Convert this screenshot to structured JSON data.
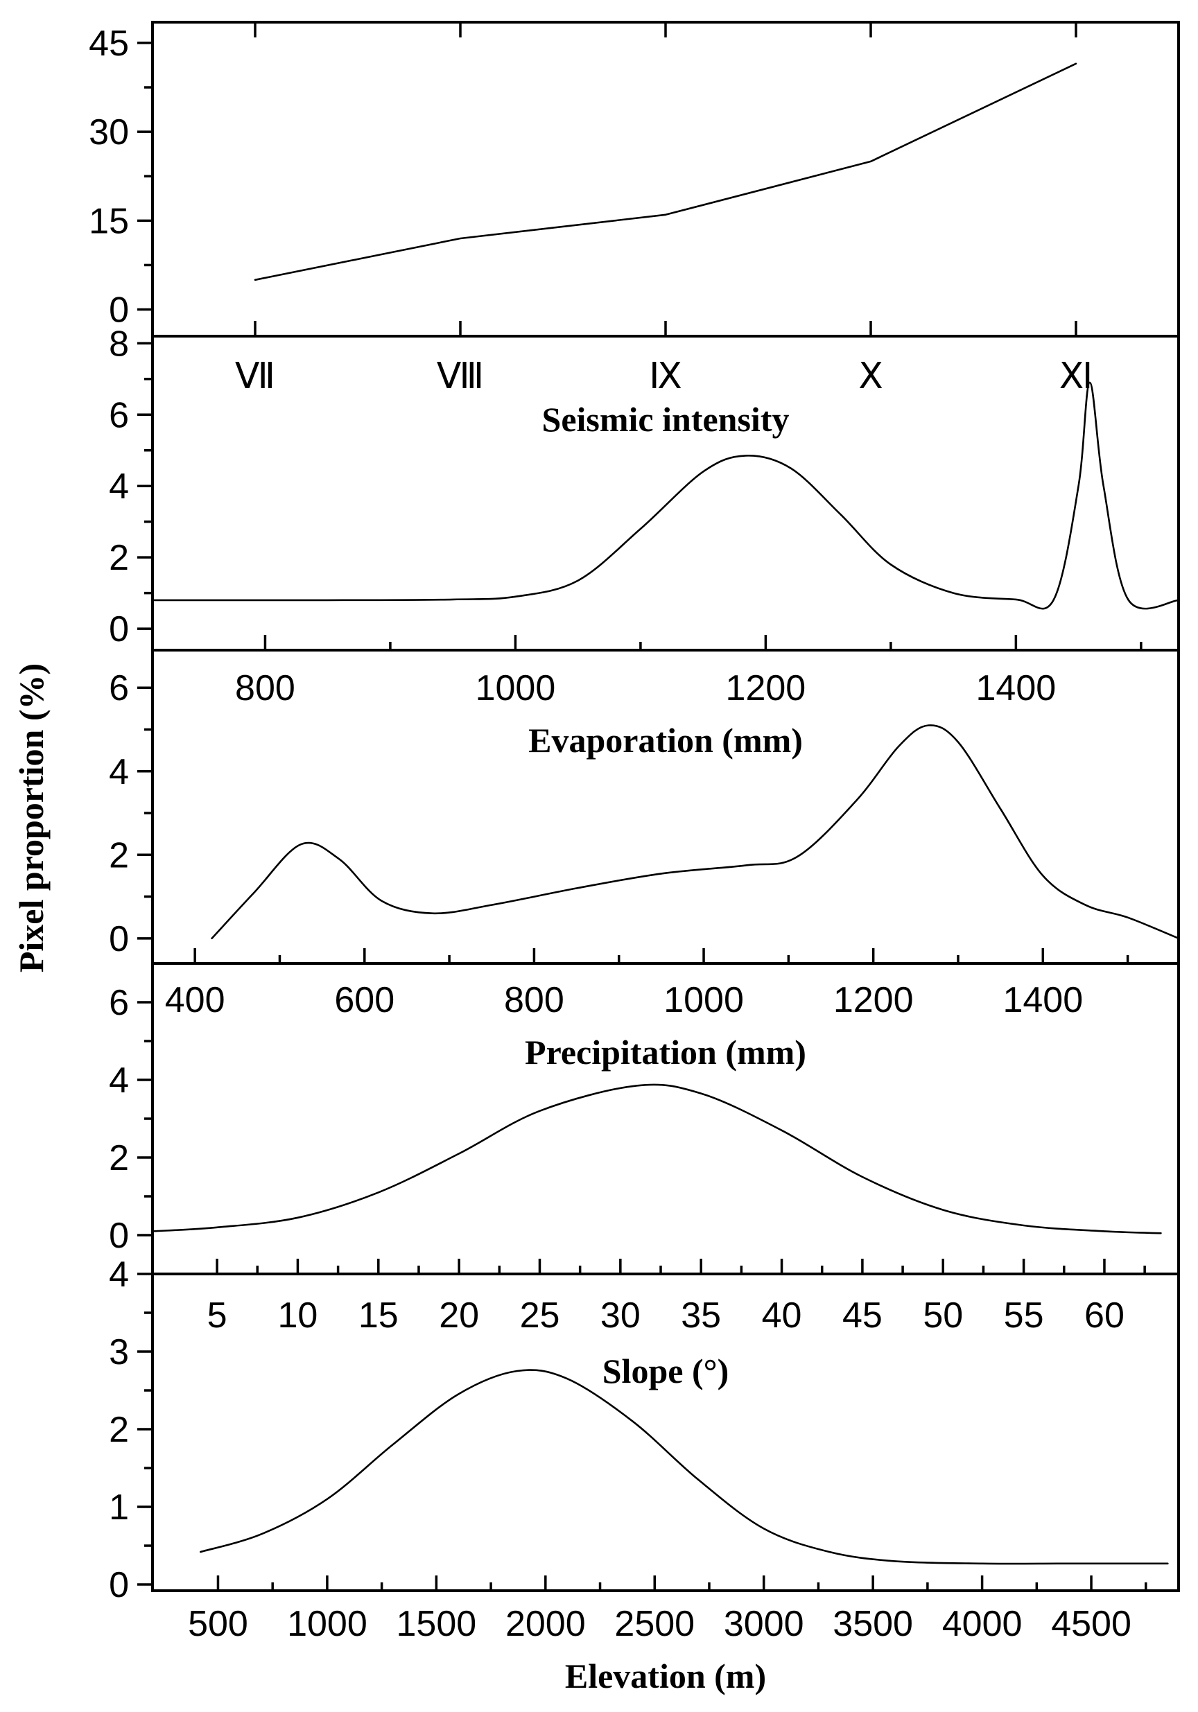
{
  "chart_data": {
    "type": "line",
    "ylabel": "Pixel proportion (%)",
    "panels": [
      {
        "id": "seismic",
        "xlabel": "Seismic intensity",
        "categories": [
          "Ⅶ",
          "Ⅷ",
          "Ⅸ",
          "Ⅹ",
          "Ⅺ"
        ],
        "values": [
          5,
          12,
          16,
          25,
          41.5
        ],
        "xlim": [
          0.5,
          5.5
        ],
        "ylim": [
          -4.5,
          48.5
        ],
        "yticks": [
          "0",
          "15",
          "30",
          "45"
        ]
      },
      {
        "id": "evaporation",
        "xlabel": "Evaporation (mm)",
        "xticks": [
          "800",
          "1000",
          "1200",
          "1400"
        ],
        "xlim": [
          710,
          1530
        ],
        "ylim": [
          -0.6,
          8.2
        ],
        "yticks": [
          "0",
          "2",
          "4",
          "6",
          "8"
        ],
        "x": [
          710,
          780,
          850,
          950,
          1000,
          1050,
          1100,
          1150,
          1184,
          1220,
          1260,
          1300,
          1350,
          1400,
          1430,
          1450,
          1459,
          1470,
          1490,
          1530
        ],
        "y": [
          0.8,
          0.8,
          0.8,
          0.82,
          0.9,
          1.35,
          2.8,
          4.4,
          4.85,
          4.5,
          3.2,
          1.8,
          1.0,
          0.82,
          0.8,
          4.0,
          6.9,
          4.0,
          0.8,
          0.8
        ]
      },
      {
        "id": "precipitation",
        "xlabel": "Precipitation (mm)",
        "xticks": [
          "400",
          "600",
          "800",
          "1000",
          "1200",
          "1400"
        ],
        "xlim": [
          350,
          1560
        ],
        "ylim": [
          -0.6,
          6.9
        ],
        "yticks": [
          "0",
          "2",
          "4",
          "6"
        ],
        "x": [
          420,
          470,
          525,
          570,
          620,
          680,
          750,
          850,
          950,
          1050,
          1110,
          1180,
          1230,
          1265,
          1300,
          1350,
          1400,
          1450,
          1500,
          1560
        ],
        "y": [
          0.0,
          1.1,
          2.25,
          1.9,
          0.9,
          0.6,
          0.8,
          1.2,
          1.55,
          1.75,
          1.95,
          3.3,
          4.6,
          5.1,
          4.7,
          3.1,
          1.5,
          0.8,
          0.5,
          0.0
        ]
      },
      {
        "id": "slope",
        "xlabel": "Slope (°)",
        "xticks": [
          "5",
          "10",
          "15",
          "20",
          "25",
          "30",
          "35",
          "40",
          "45",
          "50",
          "55",
          "60"
        ],
        "xlim": [
          1.0,
          64.6
        ],
        "ylim": [
          -1.0,
          7.0
        ],
        "yticks": [
          "0",
          "2",
          "4",
          "6"
        ],
        "x": [
          1,
          5,
          10,
          15,
          20,
          25,
          31,
          35,
          40,
          45,
          50,
          55,
          60,
          63.5
        ],
        "y": [
          0.1,
          0.2,
          0.45,
          1.1,
          2.1,
          3.2,
          3.85,
          3.65,
          2.7,
          1.5,
          0.65,
          0.25,
          0.1,
          0.05
        ]
      },
      {
        "id": "elevation",
        "xlabel": "Elevation (m)",
        "xticks": [
          "500",
          "1000",
          "1500",
          "2000",
          "2500",
          "3000",
          "3500",
          "4000",
          "4500"
        ],
        "xlim": [
          200,
          4900
        ],
        "ylim": [
          -0.08,
          4.0
        ],
        "yticks": [
          "0",
          "1",
          "2",
          "3",
          "4"
        ],
        "x": [
          420,
          700,
          1000,
          1300,
          1600,
          1870,
          2100,
          2400,
          2700,
          3000,
          3300,
          3600,
          4000,
          4400,
          4850
        ],
        "y": [
          0.42,
          0.65,
          1.1,
          1.8,
          2.45,
          2.75,
          2.65,
          2.1,
          1.35,
          0.72,
          0.42,
          0.3,
          0.27,
          0.27,
          0.27
        ]
      }
    ]
  }
}
